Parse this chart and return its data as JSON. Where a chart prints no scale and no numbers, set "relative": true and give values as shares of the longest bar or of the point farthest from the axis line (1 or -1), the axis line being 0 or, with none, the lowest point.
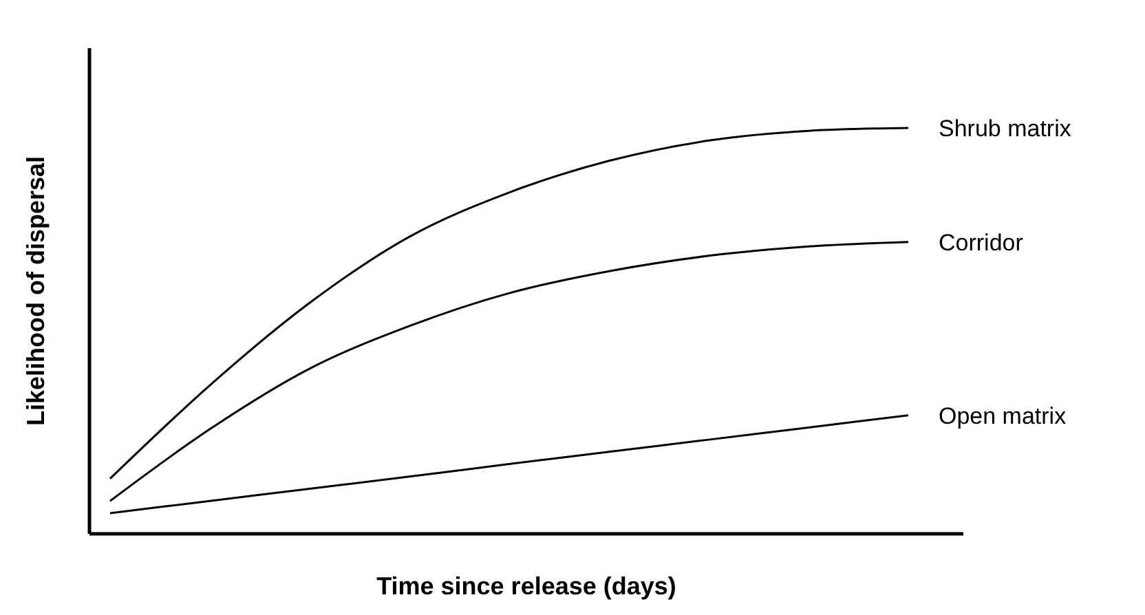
{
  "chart_data": {
    "type": "line",
    "relative": true,
    "xlabel": "Time since release (days)",
    "ylabel": "Likelihood of dispersal",
    "categories": [
      null,
      null,
      null,
      null,
      null,
      null,
      null,
      null,
      null
    ],
    "marker": "none",
    "line_style": "solid",
    "series": [
      {
        "name": "Shrub matrix",
        "color": "#000000",
        "values": [
          0.136,
          0.366,
          0.569,
          0.732,
          0.841,
          0.919,
          0.969,
          0.993,
          1.0
        ]
      },
      {
        "name": "Corridor",
        "color": "#000000",
        "values": [
          0.081,
          0.258,
          0.407,
          0.512,
          0.593,
          0.647,
          0.685,
          0.708,
          0.719
        ]
      },
      {
        "name": "Open matrix",
        "color": "#000000",
        "values": [
          0.051,
          0.081,
          0.111,
          0.141,
          0.172,
          0.202,
          0.232,
          0.262,
          0.292
        ]
      }
    ]
  }
}
